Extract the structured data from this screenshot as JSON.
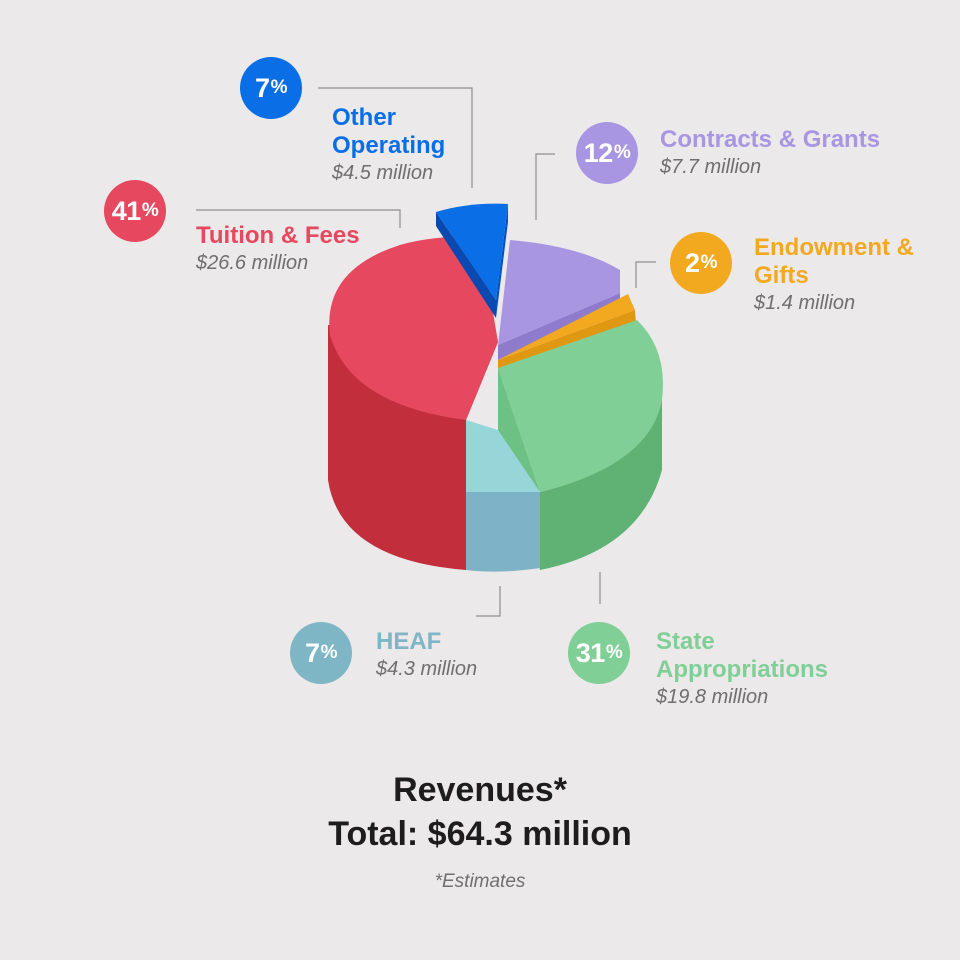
{
  "chart_data": {
    "type": "pie",
    "title": "Revenues*",
    "subtitle": "Total: $64.3 million",
    "note": "*Estimates",
    "slices": [
      {
        "name": "Other Operating",
        "percent": "7",
        "amount": "$4.5 million",
        "value": 4.5,
        "color": "#0a6fe6",
        "exploded": true
      },
      {
        "name": "Contracts & Grants",
        "percent": "12",
        "amount": "$7.7 million",
        "value": 7.7,
        "color": "#a996e3"
      },
      {
        "name": "Endowment & Gifts",
        "percent": "2",
        "amount": "$1.4 million",
        "value": 1.4,
        "color": "#f2a920"
      },
      {
        "name": "State Appropriations",
        "percent": "31",
        "amount": "$19.8 million",
        "value": 19.8,
        "color": "#7fcf96"
      },
      {
        "name": "HEAF",
        "percent": "7",
        "amount": "$4.3 million",
        "value": 4.3,
        "color": "#8fcfd6"
      },
      {
        "name": "Tuition & Fees",
        "percent": "41",
        "amount": "$26.6 million",
        "value": 26.6,
        "color": "#e5485f"
      }
    ],
    "percent_sign": "%"
  },
  "colors": {
    "background": "#ece9ea",
    "label_other": "#0a6fe6",
    "label_contracts": "#a996e3",
    "label_endowment": "#f2a920",
    "label_state": "#7fcf96",
    "label_heaf": "#7fb6c6",
    "label_tuition": "#e5485f"
  }
}
